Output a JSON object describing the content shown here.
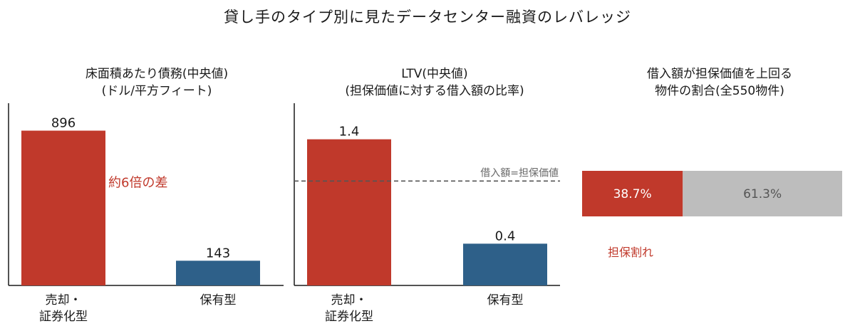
{
  "title": "貸し手のタイプ別に見たデータセンター融資のレバレッジ",
  "colors": {
    "securitized": "#c0392b",
    "held": "#2e6089",
    "remainder": "#bdbdbd",
    "reference_line": "#555555"
  },
  "chart_data": [
    {
      "type": "bar",
      "title_lines": [
        "床面積あたり債務(中央値)",
        "(ドル/平方フィート)"
      ],
      "categories": [
        [
          "売却・",
          "証券化型"
        ],
        [
          "保有型"
        ]
      ],
      "values": [
        896,
        143
      ],
      "value_labels": [
        "896",
        "143"
      ],
      "ylim": [
        0,
        960
      ],
      "annotation": "約6倍の差"
    },
    {
      "type": "bar",
      "title_lines": [
        "LTV(中央値)",
        "(担保価値に対する借入額の比率)"
      ],
      "categories": [
        [
          "売却・",
          "証券化型"
        ],
        [
          "保有型"
        ]
      ],
      "values": [
        1.4,
        0.4
      ],
      "value_labels": [
        "1.4",
        "0.4"
      ],
      "ylim": [
        0,
        1.5
      ],
      "reference_line": {
        "value": 1.0,
        "label": "借入額=担保価値"
      }
    },
    {
      "type": "stacked-bar",
      "title_lines": [
        "借入額が担保価値を上回る",
        "物件の割合(全550物件)"
      ],
      "segments": [
        {
          "value": 38.7,
          "label": "38.7%"
        },
        {
          "value": 61.3,
          "label": "61.3%"
        }
      ],
      "annotation": "担保割れ"
    }
  ]
}
